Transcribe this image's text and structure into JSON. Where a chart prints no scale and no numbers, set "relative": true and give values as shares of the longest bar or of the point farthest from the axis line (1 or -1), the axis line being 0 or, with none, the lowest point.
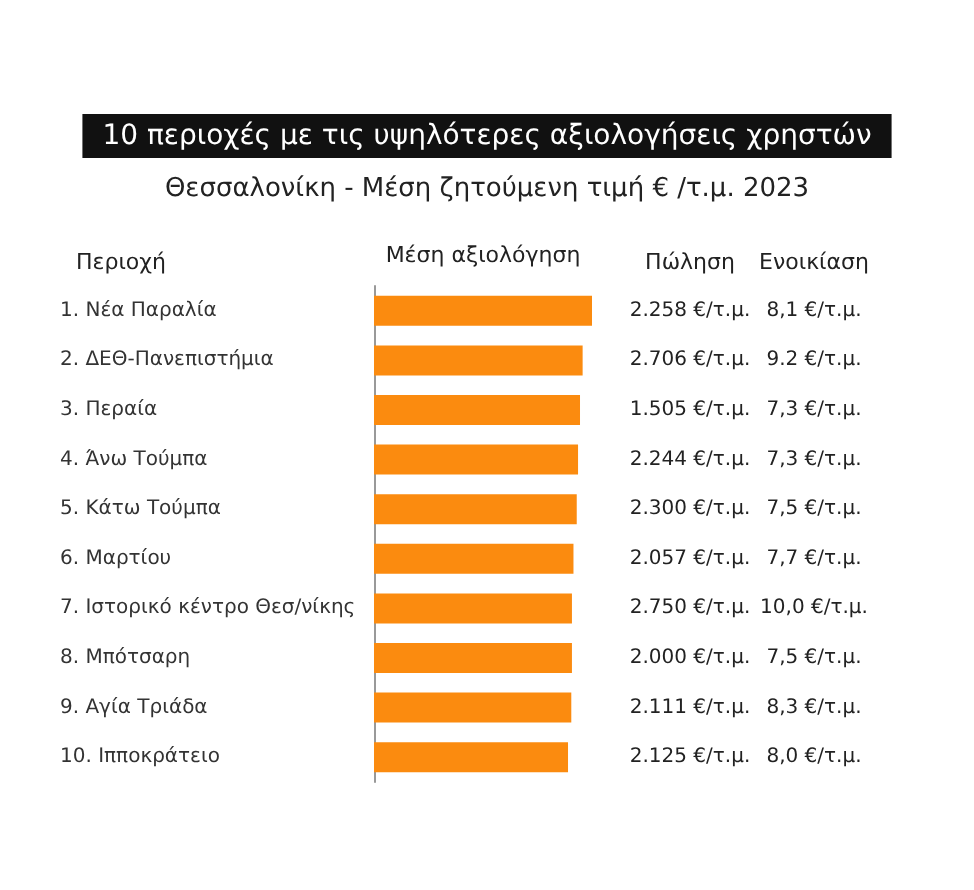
{
  "chart_data": {
    "type": "bar",
    "orientation": "horizontal",
    "relative": true,
    "title": "10 περιοχές με τις υψηλότερες αξιολογήσεις χρηστών",
    "subtitle": "Θεσσαλονίκη - Μέση ζητούμενη τιμή € /τ.μ. 2023",
    "xlabel": "Μέση αξιολόγηση",
    "ylabel": "Περιοχή",
    "categories": [
      "1. Νέα Παραλία",
      "2. ΔΕΘ-Πανεπιστήμια",
      "3. Περαία",
      "4. Άνω Τούμπα",
      "5. Κάτω Τούμπα",
      "6. Μαρτίου",
      "7. Ιστορικό κέντρο Θεσ/νίκης",
      "8. Μπότσαρη",
      "9. Αγία Τριάδα",
      "10. Ιπποκράτειο"
    ],
    "values": [
      1,
      0.957,
      0.945,
      0.936,
      0.93,
      0.915,
      0.908,
      0.908,
      0.905,
      0.89
    ],
    "color": "#fb8b0f",
    "annotations": [
      "Πώληση",
      "Ενοικίαση",
      "2.258 €/τ.μ.",
      "8,1 €/τ.μ.",
      "2.706 €/τ.μ.",
      "9.2 €/τ.μ.",
      "1.505 €/τ.μ.",
      "7,3 €/τ.μ.",
      "2.244 €/τ.μ.",
      "7,3 €/τ.μ.",
      "2.300 €/τ.μ.",
      "7,5 €/τ.μ.",
      "2.057 €/τ.μ.",
      "7,7 €/τ.μ.",
      "2.750 €/τ.μ.",
      "10,0 €/τ.μ.",
      "2.000 €/τ.μ.",
      "7,5 €/τ.μ.",
      "2.111 €/τ.μ.",
      "8,3 €/τ.μ.",
      "2.125 €/τ.μ.",
      "8,0 €/τ.μ."
    ]
  }
}
